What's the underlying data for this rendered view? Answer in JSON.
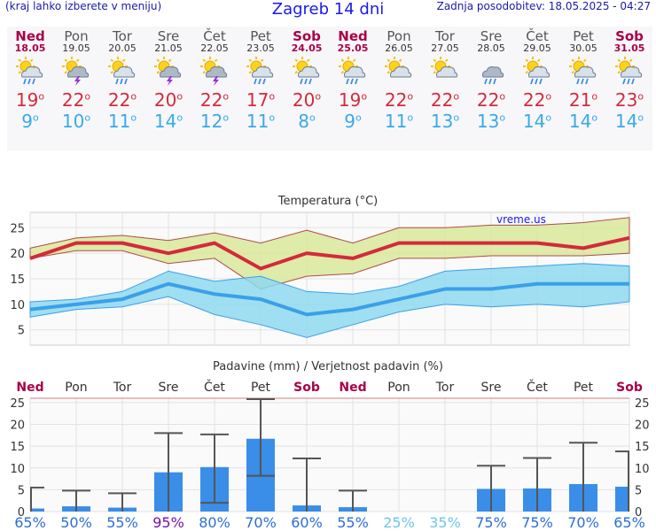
{
  "header": {
    "hint": "(kraj lahko izberete v meniju)",
    "title": "Zagreb 14 dni",
    "updated": "Zadnja posodobitev: 18.05.2025 - 04:27"
  },
  "days": [
    {
      "name": "Ned",
      "date": "18.05",
      "weekend": true,
      "icon": "sun-cloud-rain-icon",
      "tmax": "19",
      "tmin": "9",
      "rain": 0.7,
      "rain_max": 5.5,
      "rain_min": 0,
      "prob": "65%"
    },
    {
      "name": "Pon",
      "date": "19.05",
      "weekend": false,
      "icon": "sun-cloud-thunder-icon",
      "tmax": "22",
      "tmin": "10",
      "rain": 1.2,
      "rain_max": 4.8,
      "rain_min": 0,
      "prob": "50%"
    },
    {
      "name": "Tor",
      "date": "20.05",
      "weekend": false,
      "icon": "sun-cloud-rain-icon",
      "tmax": "22",
      "tmin": "11",
      "rain": 0.9,
      "rain_max": 4.2,
      "rain_min": 0,
      "prob": "55%"
    },
    {
      "name": "Sre",
      "date": "21.05",
      "weekend": false,
      "icon": "sun-cloud-thunder-icon",
      "tmax": "20",
      "tmin": "14",
      "rain": 9.0,
      "rain_max": 18.0,
      "rain_min": 0,
      "prob": "95%"
    },
    {
      "name": "Čet",
      "date": "22.05",
      "weekend": false,
      "icon": "sun-cloud-thunder-icon",
      "tmax": "22",
      "tmin": "12",
      "rain": 10.2,
      "rain_max": 17.7,
      "rain_min": 2.0,
      "prob": "80%"
    },
    {
      "name": "Pet",
      "date": "23.05",
      "weekend": false,
      "icon": "sun-cloud-rain-icon",
      "tmax": "17",
      "tmin": "11",
      "rain": 16.7,
      "rain_max": 25.8,
      "rain_min": 8.2,
      "prob": "70%"
    },
    {
      "name": "Sob",
      "date": "24.05",
      "weekend": true,
      "icon": "sun-cloud-rain-icon",
      "tmax": "20",
      "tmin": "8",
      "rain": 1.4,
      "rain_max": 12.2,
      "rain_min": 0,
      "prob": "60%"
    },
    {
      "name": "Ned",
      "date": "25.05",
      "weekend": true,
      "icon": "sun-cloud-rain-icon",
      "tmax": "19",
      "tmin": "9",
      "rain": 1.0,
      "rain_max": 4.8,
      "rain_min": 0,
      "prob": "55%"
    },
    {
      "name": "Pon",
      "date": "26.05",
      "weekend": false,
      "icon": "sun-cloud-icon",
      "tmax": "22",
      "tmin": "11",
      "rain": 0,
      "rain_max": 0,
      "rain_min": 0,
      "prob": "25%"
    },
    {
      "name": "Tor",
      "date": "27.05",
      "weekend": false,
      "icon": "sun-cloud-icon",
      "tmax": "22",
      "tmin": "13",
      "rain": 0,
      "rain_max": 0,
      "rain_min": 0,
      "prob": "35%"
    },
    {
      "name": "Sre",
      "date": "28.05",
      "weekend": false,
      "icon": "cloud-rain-icon",
      "tmax": "22",
      "tmin": "13",
      "rain": 5.2,
      "rain_max": 10.5,
      "rain_min": 0,
      "prob": "75%"
    },
    {
      "name": "Čet",
      "date": "29.05",
      "weekend": false,
      "icon": "sun-cloud-rain-icon",
      "tmax": "22",
      "tmin": "14",
      "rain": 5.3,
      "rain_max": 12.3,
      "rain_min": 0,
      "prob": "75%"
    },
    {
      "name": "Pet",
      "date": "30.05",
      "weekend": false,
      "icon": "sun-cloud-rain-icon",
      "tmax": "21",
      "tmin": "14",
      "rain": 6.3,
      "rain_max": 15.8,
      "rain_min": 0,
      "prob": "70%"
    },
    {
      "name": "Sob",
      "date": "31.05",
      "weekend": true,
      "icon": "sun-cloud-rain-icon",
      "tmax": "23",
      "tmin": "14",
      "rain": 5.7,
      "rain_max": 13.8,
      "rain_min": 0,
      "prob": "65%"
    }
  ],
  "temp_chart": {
    "title": "Temperatura (°C)",
    "watermark": "vreme.us",
    "y_ticks": [
      "5",
      "10",
      "15",
      "20",
      "25"
    ],
    "max_band": [
      [
        19,
        21
      ],
      [
        20.5,
        23
      ],
      [
        20.5,
        23.5
      ],
      [
        18,
        22.5
      ],
      [
        19,
        24
      ],
      [
        13,
        22
      ],
      [
        15.5,
        24.5
      ],
      [
        16,
        22
      ],
      [
        19,
        25
      ],
      [
        19,
        25
      ],
      [
        19.5,
        25.5
      ],
      [
        19.5,
        25.5
      ],
      [
        19.5,
        26
      ],
      [
        20,
        27
      ]
    ],
    "min_band": [
      [
        7.5,
        10.5
      ],
      [
        9,
        11
      ],
      [
        9.5,
        12.5
      ],
      [
        11.5,
        16.5
      ],
      [
        8,
        14.5
      ],
      [
        6,
        15.5
      ],
      [
        3.5,
        12.5
      ],
      [
        6,
        12
      ],
      [
        8.5,
        13.5
      ],
      [
        10,
        16.5
      ],
      [
        9.5,
        17
      ],
      [
        10,
        17.5
      ],
      [
        9.5,
        18
      ],
      [
        10.5,
        17.5
      ]
    ],
    "colors": {
      "max_line": "#d42a3c",
      "min_line": "#3aa0e8",
      "max_band": "#d8e89a",
      "min_band": "#8fd8ee"
    }
  },
  "rain_chart": {
    "title": "Padavine (mm) / Verjetnost padavin (%)",
    "y_ticks": [
      "0",
      "5",
      "10",
      "15",
      "20",
      "25"
    ],
    "colors": {
      "bar": "#3a8ee8",
      "err": "#555555",
      "weekend": "#a8004a"
    }
  }
}
